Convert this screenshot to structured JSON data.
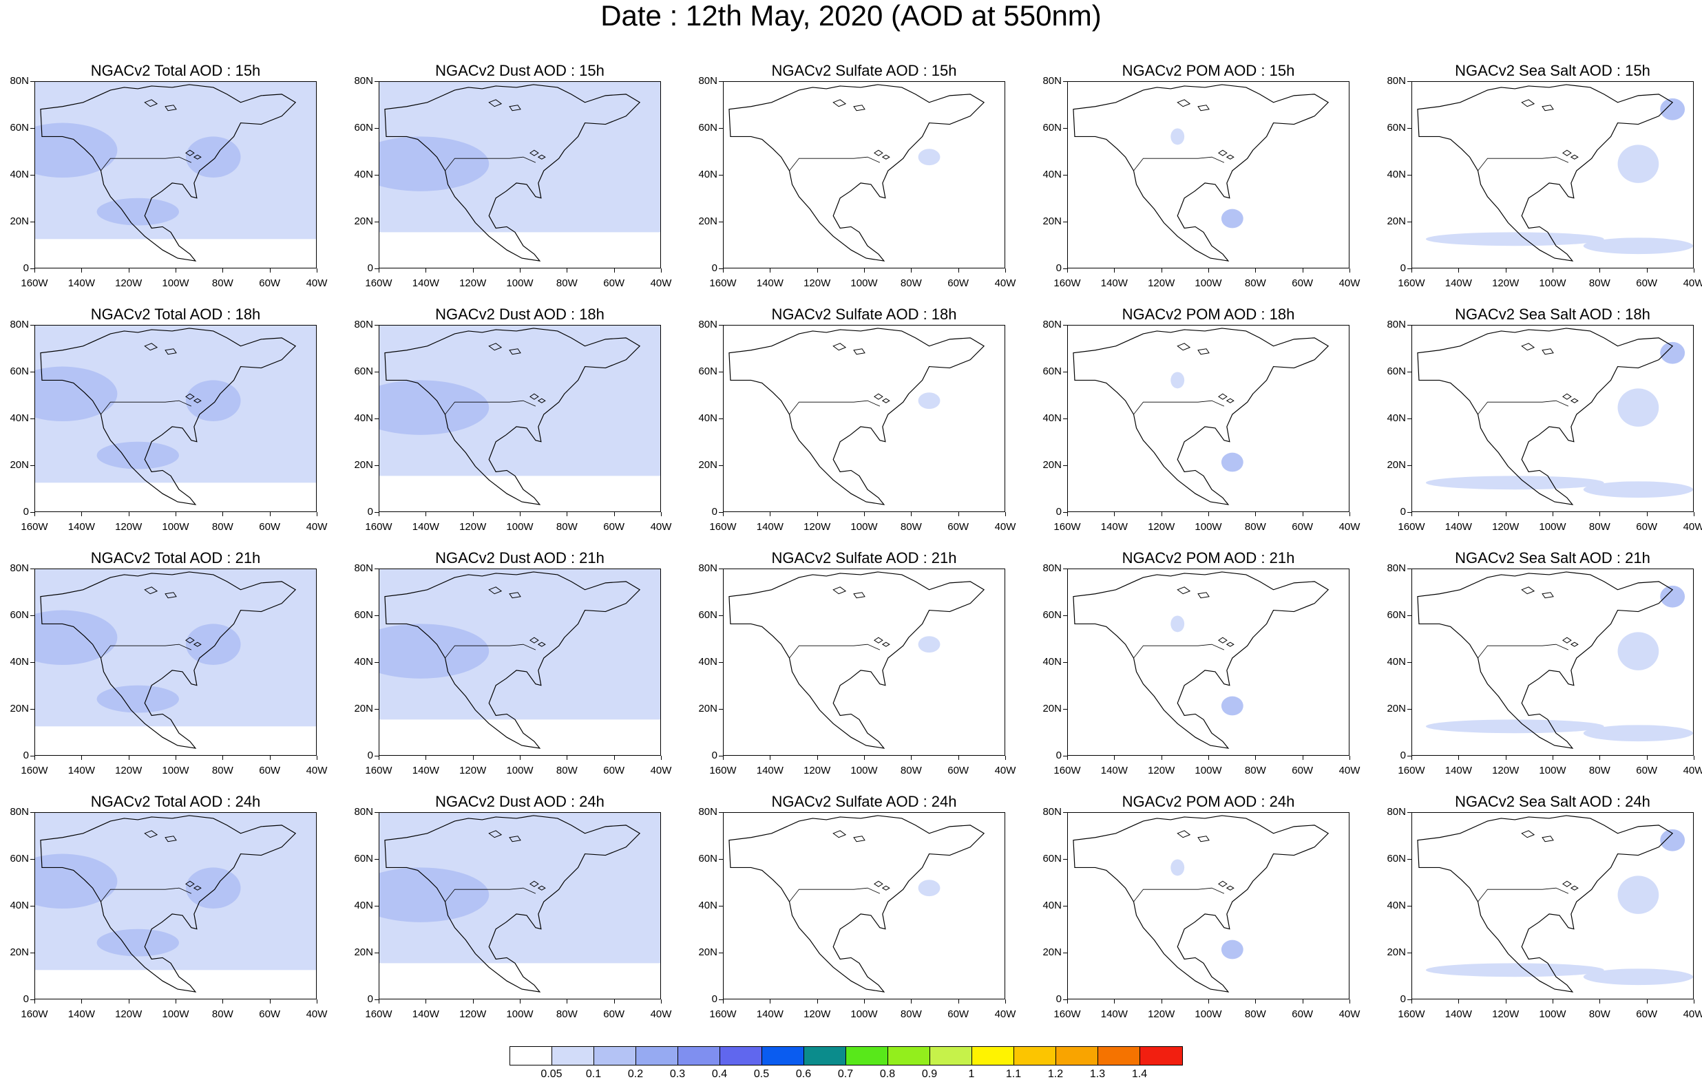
{
  "title": "Date : 12th May, 2020 (AOD at 550nm)",
  "lat_labels": [
    "80N",
    "60N",
    "40N",
    "20N",
    "0"
  ],
  "lon_labels": [
    "160W",
    "140W",
    "120W",
    "100W",
    "80W",
    "60W",
    "40W"
  ],
  "panels": [
    {
      "title": "NGACv2 Total AOD : 15h",
      "species": "total",
      "hour": 15
    },
    {
      "title": "NGACv2 Dust AOD : 15h",
      "species": "dust",
      "hour": 15
    },
    {
      "title": "NGACv2 Sulfate AOD : 15h",
      "species": "sulfate",
      "hour": 15
    },
    {
      "title": "NGACv2 POM AOD : 15h",
      "species": "pom",
      "hour": 15
    },
    {
      "title": "NGACv2 Sea Salt AOD : 15h",
      "species": "seasalt",
      "hour": 15
    },
    {
      "title": "NGACv2 Total AOD : 18h",
      "species": "total",
      "hour": 18
    },
    {
      "title": "NGACv2 Dust AOD : 18h",
      "species": "dust",
      "hour": 18
    },
    {
      "title": "NGACv2 Sulfate AOD : 18h",
      "species": "sulfate",
      "hour": 18
    },
    {
      "title": "NGACv2 POM AOD : 18h",
      "species": "pom",
      "hour": 18
    },
    {
      "title": "NGACv2 Sea Salt AOD : 18h",
      "species": "seasalt",
      "hour": 18
    },
    {
      "title": "NGACv2 Total AOD : 21h",
      "species": "total",
      "hour": 21
    },
    {
      "title": "NGACv2 Dust AOD : 21h",
      "species": "dust",
      "hour": 21
    },
    {
      "title": "NGACv2 Sulfate AOD : 21h",
      "species": "sulfate",
      "hour": 21
    },
    {
      "title": "NGACv2 POM AOD : 21h",
      "species": "pom",
      "hour": 21
    },
    {
      "title": "NGACv2 Sea Salt AOD : 21h",
      "species": "seasalt",
      "hour": 21
    },
    {
      "title": "NGACv2 Total AOD : 24h",
      "species": "total",
      "hour": 24
    },
    {
      "title": "NGACv2 Dust AOD : 24h",
      "species": "dust",
      "hour": 24
    },
    {
      "title": "NGACv2 Sulfate AOD : 24h",
      "species": "sulfate",
      "hour": 24
    },
    {
      "title": "NGACv2 POM AOD : 24h",
      "species": "pom",
      "hour": 24
    },
    {
      "title": "NGACv2 Sea Salt  AOD : 24h",
      "species": "seasalt",
      "hour": 24
    }
  ],
  "colorbar": {
    "colors": [
      "#ffffff",
      "#d2dcf9",
      "#b4c3f5",
      "#96aaf2",
      "#7f8ff0",
      "#6067ee",
      "#0a5cf0",
      "#0b8c8c",
      "#58e81a",
      "#93ee1c",
      "#c6f24a",
      "#fff300",
      "#fcc500",
      "#f9a400",
      "#f57300",
      "#f21f10"
    ],
    "labels": [
      "0.05",
      "0.1",
      "0.2",
      "0.3",
      "0.4",
      "0.5",
      "0.6",
      "0.7",
      "0.8",
      "0.9",
      "1",
      "1.1",
      "1.2",
      "1.3",
      "1.4"
    ]
  },
  "colors": {
    "low_aod": "#d2dcf9",
    "mid_aod": "#b4c3f5",
    "coast": "#000000"
  }
}
